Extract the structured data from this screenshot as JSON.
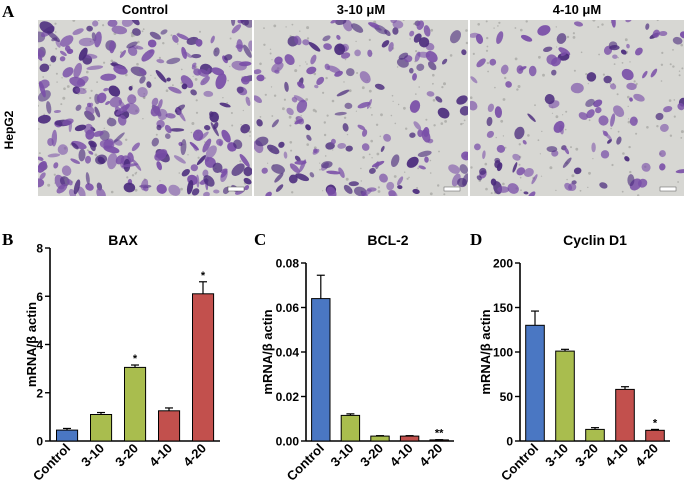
{
  "panel_a": {
    "letter": "A",
    "row_label": "HepG2",
    "columns": [
      {
        "title": "Control",
        "density": 1.0
      },
      {
        "title": "3-10 μM",
        "density": 0.6
      },
      {
        "title": "4-10 μM",
        "density": 0.45
      }
    ]
  },
  "stain_colors": {
    "background": "#d7d7d3",
    "cell": "#7a4fa8",
    "cell_dark": "#4a2a7c"
  },
  "chart_data": [
    {
      "type": "bar",
      "letter": "B",
      "title": "BAX",
      "ylabel": "mRNA/β actin",
      "categories": [
        "Control",
        "3-10",
        "3-20",
        "4-10",
        "4-20"
      ],
      "values": [
        0.45,
        1.1,
        3.05,
        1.25,
        6.1
      ],
      "errors": [
        0.07,
        0.08,
        0.1,
        0.12,
        0.5
      ],
      "significance": [
        "",
        "",
        "*",
        "",
        "*"
      ],
      "ylim": [
        0,
        8
      ],
      "yticks": [
        "0",
        "2",
        "4",
        "6",
        "8"
      ],
      "ytick_values": [
        0,
        2,
        4,
        6,
        8
      ],
      "colors": [
        "#4a77c3",
        "#a9bd4e",
        "#a9bd4e",
        "#c2504d",
        "#c2504d"
      ]
    },
    {
      "type": "bar",
      "letter": "C",
      "title": "BCL-2",
      "ylabel": "mRNA/β actin",
      "categories": [
        "Control",
        "3-10",
        "3-20",
        "4-10",
        "4-20"
      ],
      "values": [
        0.064,
        0.0115,
        0.0022,
        0.0022,
        0.0005
      ],
      "errors": [
        0.0105,
        0.0007,
        0.0002,
        0.0002,
        0.0001
      ],
      "significance": [
        "",
        "",
        "",
        "",
        "**"
      ],
      "ylim": [
        0,
        0.08
      ],
      "yticks": [
        "0.00",
        "0.02",
        "0.04",
        "0.06",
        "0.08"
      ],
      "ytick_values": [
        0,
        0.02,
        0.04,
        0.06,
        0.08
      ],
      "colors": [
        "#4a77c3",
        "#a9bd4e",
        "#a9bd4e",
        "#c2504d",
        "#c2504d"
      ]
    },
    {
      "type": "bar",
      "letter": "D",
      "title": "Cyclin D1",
      "ylabel": "mRNA/β actin",
      "categories": [
        "Control",
        "3-10",
        "3-20",
        "4-10",
        "4-20"
      ],
      "values": [
        130,
        101,
        13,
        58,
        12
      ],
      "errors": [
        16,
        2,
        2,
        3,
        1
      ],
      "significance": [
        "",
        "",
        "",
        "",
        "*"
      ],
      "ylim": [
        0,
        200
      ],
      "yticks": [
        "0",
        "50",
        "100",
        "150",
        "200"
      ],
      "ytick_values": [
        0,
        50,
        100,
        150,
        200
      ],
      "colors": [
        "#4a77c3",
        "#a9bd4e",
        "#a9bd4e",
        "#c2504d",
        "#c2504d"
      ]
    }
  ]
}
